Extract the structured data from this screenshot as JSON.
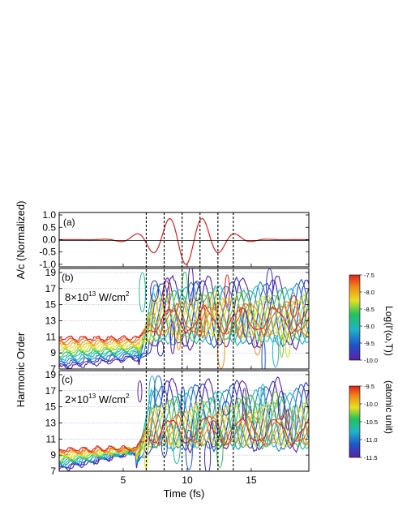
{
  "chart_data": [
    {
      "type": "line",
      "panel_label": "(a)",
      "ylabel": "A/c (Normalized)",
      "ylim": [
        -1.1,
        1.1
      ],
      "xlim": [
        0,
        19.5
      ],
      "y_ticks": [
        "1.0",
        "0.5",
        "0.0",
        "-0.5",
        "-1.0"
      ],
      "y_tick_values": [
        1.0,
        0.5,
        0.0,
        -0.5,
        -1.0
      ],
      "series": [
        {
          "color": "#e02020",
          "envelope": {
            "center": 9.9,
            "width": 3.2
          },
          "carrier": {
            "period": 2.6,
            "phase_ref": 8.6
          }
        }
      ]
    },
    {
      "type": "contour",
      "panel_label": "(b)",
      "intensity": "8×10",
      "intensity_exp": "13",
      "intensity_unit": " W/cm",
      "intensity_unit_exp": "2",
      "xlim": [
        0,
        19.5
      ],
      "ylim": [
        7,
        19.5
      ],
      "y_ticks": [
        "19",
        "17",
        "15",
        "13",
        "11",
        "9",
        "7"
      ],
      "y_tick_values": [
        19,
        17,
        15,
        13,
        11,
        9,
        7
      ],
      "colorbar": {
        "ticks": [
          "-7.5",
          "-8.0",
          "-8.5",
          "-9.0",
          "-9.5",
          "-10.0"
        ],
        "tick_values": [
          -7.5,
          -8.0,
          -8.5,
          -9.0,
          -9.5,
          -10.0
        ],
        "range": [
          -10.0,
          -7.5
        ]
      }
    },
    {
      "type": "contour",
      "panel_label": "(c)",
      "intensity": "2×10",
      "intensity_exp": "13",
      "intensity_unit": " W/cm",
      "intensity_unit_exp": "2",
      "xlim": [
        0,
        19.5
      ],
      "ylim": [
        7,
        19.5
      ],
      "y_ticks": [
        "19",
        "17",
        "15",
        "13",
        "11",
        "9",
        "7"
      ],
      "y_tick_values": [
        19,
        17,
        15,
        13,
        11,
        9,
        7
      ],
      "colorbar": {
        "ticks": [
          "-9.5",
          "-10.0",
          "-10.5",
          "-11.0",
          "-11.5"
        ],
        "tick_values": [
          -9.5,
          -10.0,
          -10.5,
          -11.0,
          -11.5
        ],
        "range": [
          -11.5,
          -9.5
        ]
      }
    }
  ],
  "shared": {
    "xlabel": "Time (fs)",
    "x_ticks": [
      "5",
      "10",
      "15"
    ],
    "x_tick_values": [
      5,
      10,
      15
    ],
    "shared_ylabel": "Harmonic Order",
    "colorbar_label_main": "Log(I'(ω,T))",
    "colorbar_label_unit": "(atomic unit)",
    "dashed_times": [
      6.8,
      8.2,
      9.6,
      11.0,
      12.4,
      13.6
    ]
  }
}
